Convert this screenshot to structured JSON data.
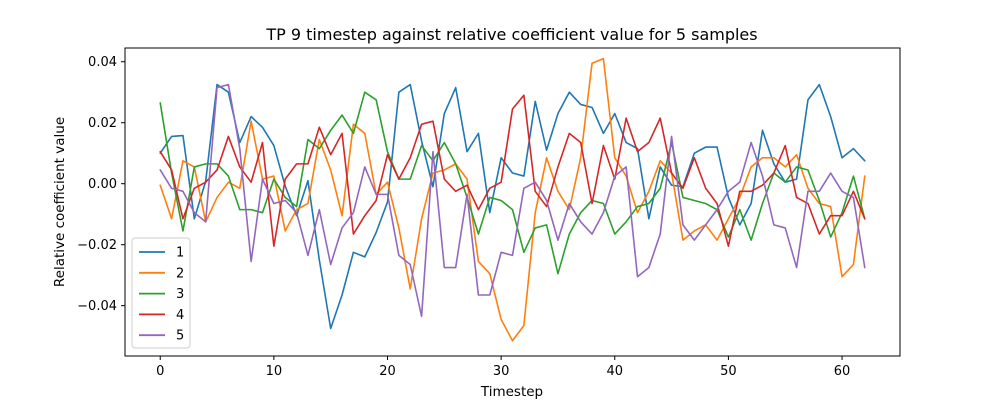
{
  "chart_data": {
    "type": "line",
    "title": "TP 9 timestep against relative coefficient value for 5 samples",
    "xlabel": "Timestep",
    "ylabel": "Relative coefficient value",
    "xlim": [
      -3.1,
      65.1
    ],
    "ylim": [
      -0.0565,
      0.0445
    ],
    "xticks": [
      0,
      10,
      20,
      30,
      40,
      50,
      60
    ],
    "yticks": [
      -0.04,
      -0.02,
      0.0,
      0.02,
      0.04
    ],
    "ytick_labels": [
      "−0.04",
      "−0.02",
      "0.00",
      "0.02",
      "0.04"
    ],
    "grid": false,
    "legend_position": "lower-left",
    "series": [
      {
        "name": "1",
        "color": "#1f77b4",
        "values": [
          0.01,
          0.0155,
          0.0158,
          -0.0115,
          0.0008,
          0.0325,
          0.03,
          0.0135,
          0.022,
          0.0185,
          0.0125,
          -0.0008,
          -0.0105,
          0.001,
          -0.025,
          -0.0475,
          -0.0365,
          -0.0225,
          -0.024,
          -0.016,
          -0.006,
          0.03,
          0.0325,
          0.014,
          -0.001,
          0.023,
          0.0315,
          0.0105,
          0.0165,
          -0.0095,
          0.0085,
          0.0035,
          0.0025,
          0.027,
          0.011,
          0.023,
          0.03,
          0.026,
          0.025,
          0.0165,
          0.023,
          0.0135,
          0.0115,
          -0.0115,
          0.0055,
          -0.0005,
          -0.001,
          0.01,
          0.012,
          0.012,
          -0.0045,
          -0.0135,
          -0.0065,
          0.0175,
          0.0065,
          0.0005,
          0.0015,
          0.0275,
          0.0325,
          0.022,
          0.0085,
          0.0115,
          0.0075
        ]
      },
      {
        "name": "2",
        "color": "#ff7f0e",
        "values": [
          -0.0005,
          -0.0115,
          0.0075,
          0.0055,
          -0.0125,
          -0.0045,
          0.0005,
          -0.0015,
          0.0205,
          0.0015,
          0.0025,
          -0.0155,
          -0.0085,
          -0.0065,
          0.0145,
          0.0045,
          -0.0105,
          0.0195,
          0.0165,
          -0.0035,
          0.0005,
          -0.0145,
          -0.0345,
          -0.0115,
          0.0035,
          0.0045,
          0.0065,
          0.0015,
          -0.0255,
          -0.0295,
          -0.0445,
          -0.0515,
          -0.0465,
          -0.0095,
          0.0085,
          -0.0025,
          -0.0085,
          0.0085,
          0.0395,
          0.041,
          0.0085,
          0.0025,
          -0.0095,
          -0.0025,
          0.0075,
          0.0035,
          -0.0185,
          -0.0155,
          -0.0135,
          -0.0185,
          -0.0115,
          -0.0045,
          0.0055,
          0.0085,
          0.0085,
          0.0055,
          0.0095,
          -0.0015,
          -0.0065,
          -0.0075,
          -0.0305,
          -0.0265,
          0.0025
        ]
      },
      {
        "name": "3",
        "color": "#2ca02c",
        "values": [
          0.0265,
          0.0035,
          -0.0155,
          0.0055,
          0.0065,
          0.0065,
          0.0025,
          -0.0085,
          -0.0085,
          -0.0095,
          0.0015,
          -0.0045,
          -0.0075,
          0.0145,
          0.0115,
          0.0175,
          0.0225,
          0.0165,
          0.03,
          0.0275,
          0.0105,
          0.0015,
          0.0015,
          0.0125,
          0.0075,
          0.0135,
          0.0065,
          -0.0045,
          -0.0165,
          -0.0045,
          -0.0055,
          -0.0085,
          -0.0225,
          -0.0145,
          -0.0135,
          -0.0295,
          -0.0165,
          -0.0095,
          -0.0055,
          -0.0065,
          -0.0165,
          -0.0125,
          -0.0075,
          -0.0065,
          -0.0015,
          0.0135,
          -0.0045,
          -0.0055,
          -0.0065,
          -0.0085,
          -0.0175,
          -0.0085,
          -0.0185,
          -0.0065,
          0.0035,
          0.0005,
          0.0055,
          0.0045,
          -0.0055,
          -0.0175,
          -0.0095,
          0.0025,
          -0.0115
        ]
      },
      {
        "name": "4",
        "color": "#d62728",
        "values": [
          0.0105,
          0.0045,
          -0.0115,
          -0.0015,
          0.0005,
          0.0045,
          0.0155,
          0.0055,
          0.0005,
          0.0135,
          -0.0205,
          0.0015,
          0.0065,
          0.0065,
          0.0185,
          0.0095,
          0.0165,
          -0.0165,
          -0.0105,
          -0.0055,
          0.0095,
          0.0015,
          0.0085,
          0.0195,
          0.0205,
          0.0015,
          -0.0025,
          -0.0005,
          -0.0085,
          -0.0015,
          0.0005,
          0.0245,
          0.029,
          -0.0025,
          -0.0075,
          0.0055,
          0.0165,
          0.0135,
          -0.0065,
          0.0125,
          0.0015,
          0.0215,
          0.0105,
          0.0135,
          0.0215,
          0.0035,
          -0.0015,
          0.0085,
          -0.0015,
          -0.0065,
          -0.0205,
          -0.0025,
          -0.0025,
          -0.0005,
          0.0035,
          0.0125,
          -0.0045,
          -0.0065,
          -0.0165,
          -0.0105,
          -0.0105,
          -0.0025,
          -0.0115
        ]
      },
      {
        "name": "5",
        "color": "#9467bd",
        "values": [
          0.0045,
          -0.0015,
          -0.0025,
          -0.0095,
          -0.0125,
          0.0315,
          0.0325,
          0.0115,
          -0.0255,
          0.0015,
          -0.0065,
          -0.0055,
          -0.0095,
          -0.0235,
          -0.0085,
          -0.0265,
          -0.0145,
          -0.0095,
          0.0055,
          -0.0035,
          -0.0035,
          -0.0235,
          -0.0265,
          -0.0435,
          0.0105,
          -0.0275,
          -0.0275,
          -0.0035,
          -0.0365,
          -0.0365,
          -0.0225,
          -0.0235,
          -0.0015,
          0.0005,
          -0.0055,
          -0.0185,
          -0.0065,
          -0.0125,
          -0.0165,
          -0.0095,
          0.0025,
          0.0055,
          -0.0305,
          -0.0275,
          -0.0165,
          0.0155,
          -0.0135,
          -0.0185,
          -0.0135,
          -0.0085,
          -0.0025,
          0.0005,
          0.0135,
          0.0025,
          -0.0135,
          -0.0145,
          -0.0275,
          -0.0025,
          -0.0025,
          0.0035,
          -0.0025,
          -0.0045,
          -0.0275
        ]
      }
    ]
  }
}
